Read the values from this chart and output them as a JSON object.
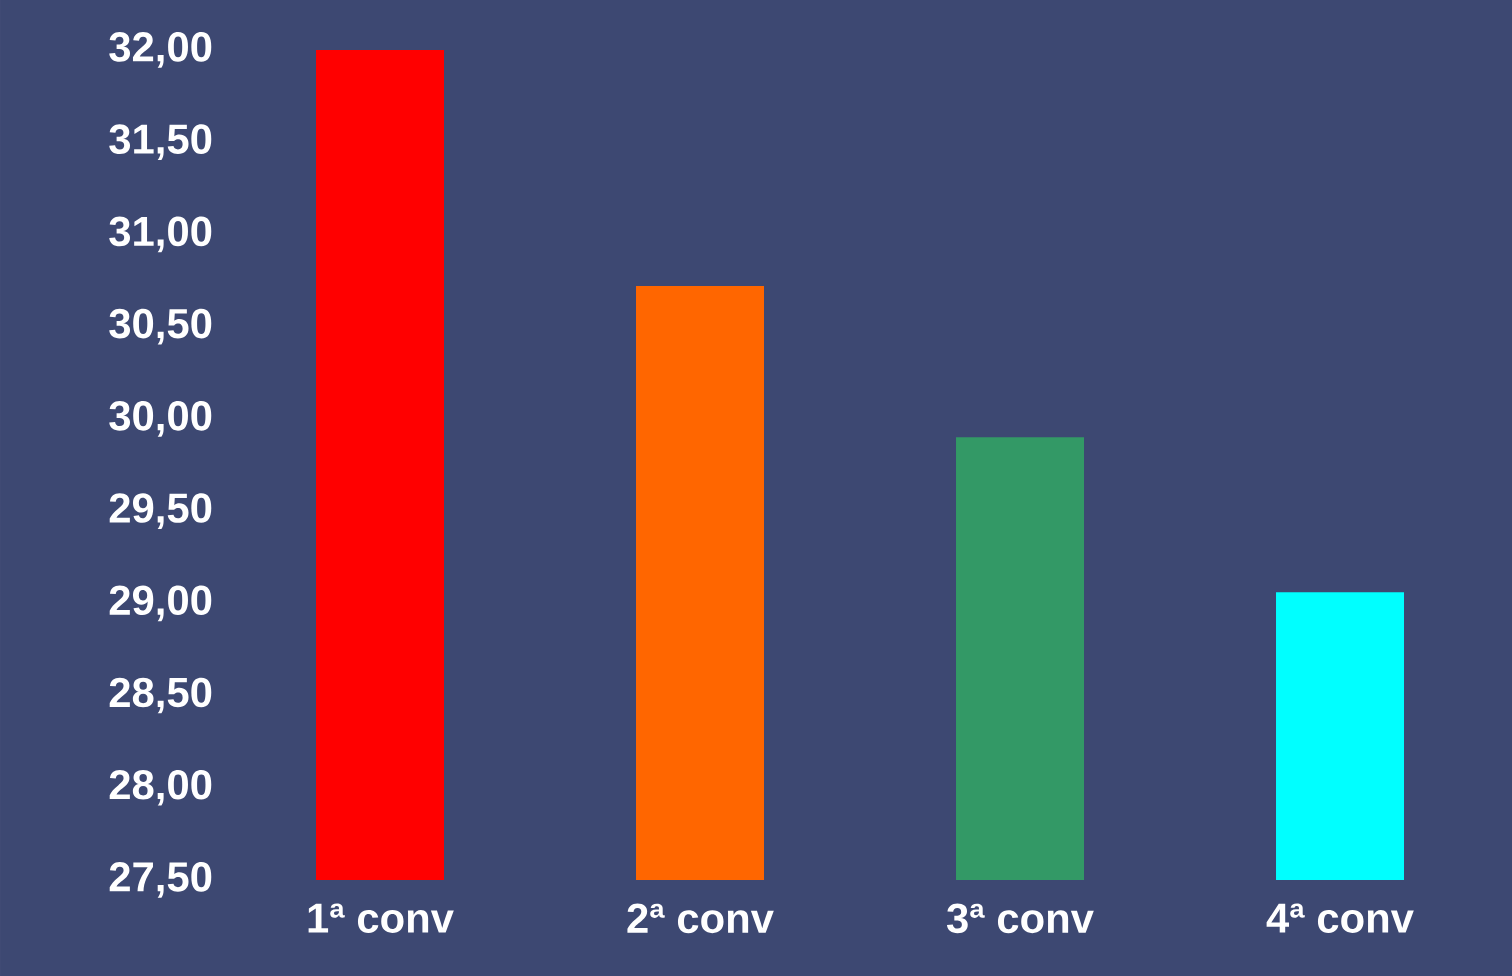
{
  "chart_data": {
    "type": "bar",
    "categories": [
      "1ª conv",
      "2ª conv",
      "3ª conv",
      "4ª conv"
    ],
    "values": [
      32.0,
      30.72,
      29.9,
      29.06
    ],
    "colors": [
      "#ff0000",
      "#ff6600",
      "#339966",
      "#00ffff"
    ],
    "ylim": [
      27.5,
      32.0
    ],
    "yticks": [
      {
        "value": 27.5,
        "label": "27,50"
      },
      {
        "value": 28.0,
        "label": "28,00"
      },
      {
        "value": 28.5,
        "label": "28,50"
      },
      {
        "value": 29.0,
        "label": "29,00"
      },
      {
        "value": 29.5,
        "label": "29,50"
      },
      {
        "value": 30.0,
        "label": "30,00"
      },
      {
        "value": 30.5,
        "label": "30,50"
      },
      {
        "value": 31.0,
        "label": "31,00"
      },
      {
        "value": 31.5,
        "label": "31,50"
      },
      {
        "value": 32.0,
        "label": "32,00"
      }
    ]
  }
}
